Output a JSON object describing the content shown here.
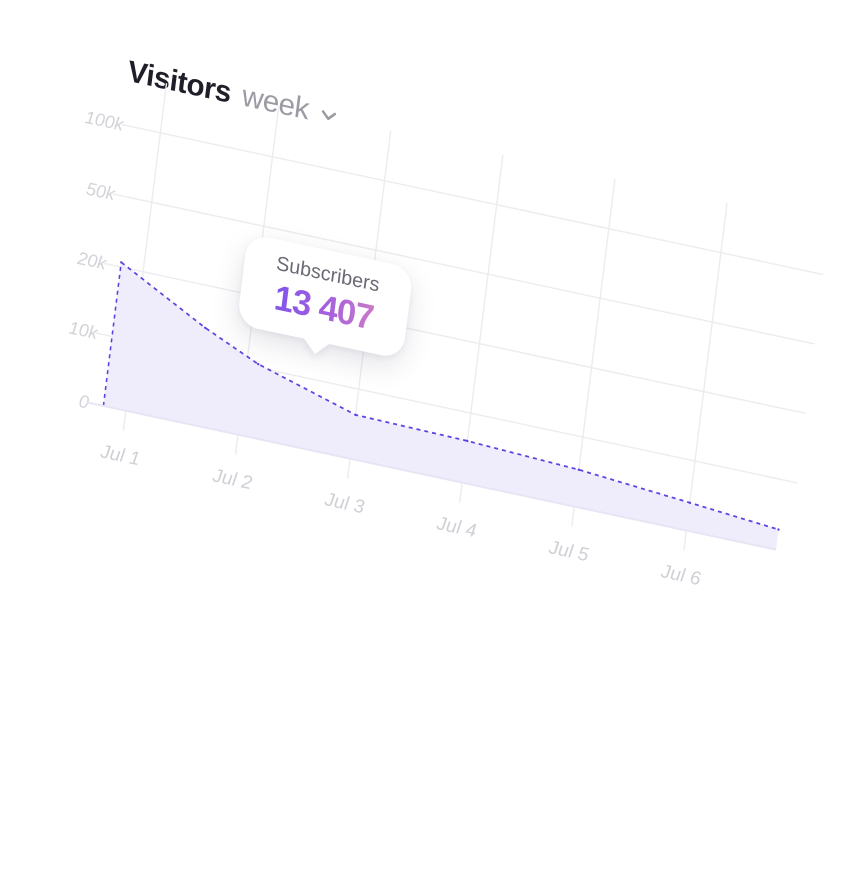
{
  "header": {
    "title": "Visitors",
    "period": "week",
    "period_icon": "chevron-down-icon"
  },
  "tooltip": {
    "label": "Subscribers",
    "value": "13 407"
  },
  "colors": {
    "line": "#5b45e0",
    "area": "#efecfc",
    "grid": "#ececef",
    "tick": "#cfcfd6",
    "tooltip_gradient": [
      "#6b4df0",
      "#a25fe0",
      "#e58ab6"
    ]
  },
  "chart_data": {
    "type": "area",
    "title": "Visitors",
    "x_tick_labels": [
      "Jul 1",
      "Jul 2",
      "Jul 3",
      "Jul 4",
      "Jul 5",
      "Jul 6"
    ],
    "y_tick_labels": [
      "0",
      "10k",
      "20k",
      "50k",
      "100k"
    ],
    "y_ticks": [
      0,
      10000,
      20000,
      50000,
      100000
    ],
    "y_scale": "nonlinear",
    "grid": true,
    "legend": "none",
    "series": [
      {
        "x": [
          0.8,
          1.6,
          2.1,
          3.0,
          4.0,
          5.0,
          6.0,
          6.8
        ],
        "y": [
          22000,
          14000,
          10500,
          6300,
          6000,
          5300,
          4000,
          2900
        ]
      }
    ]
  }
}
